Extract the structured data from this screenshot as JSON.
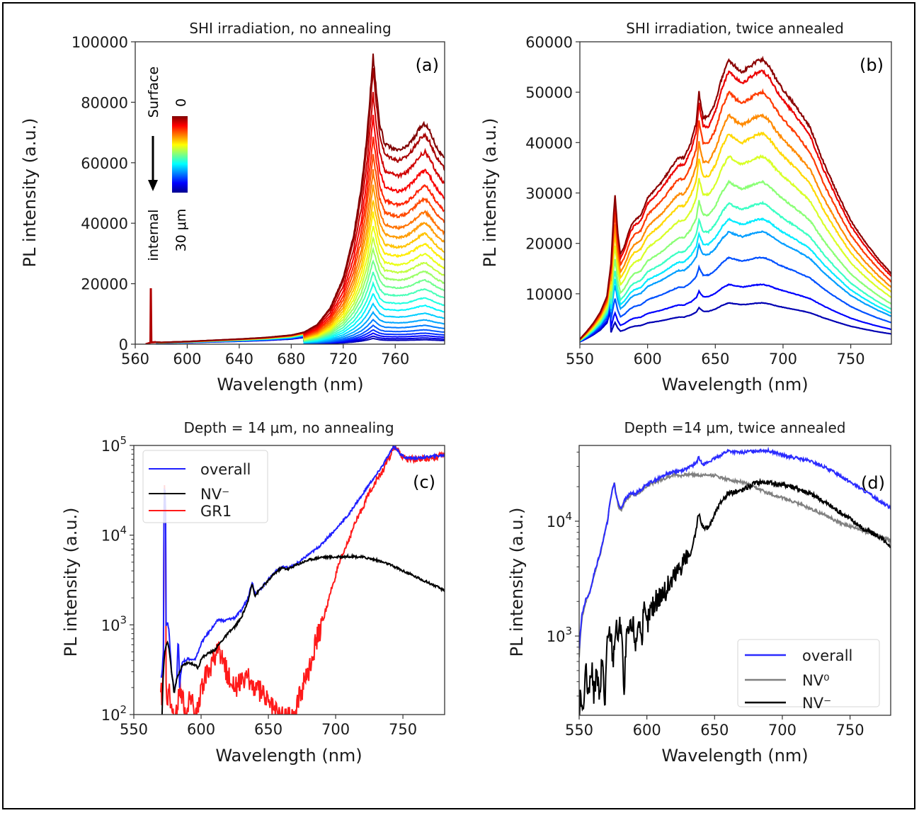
{
  "chart_data": [
    {
      "id": "a",
      "type": "line",
      "title": "SHI irradiation, no annealing",
      "panel_label": "(a)",
      "xlabel": "Wavelength (nm)",
      "ylabel": "PL intensity (a.u.)",
      "xlim": [
        560,
        798
      ],
      "ylim": [
        0,
        100000
      ],
      "xticks": [
        560,
        600,
        640,
        680,
        720,
        760
      ],
      "yticks": [
        0,
        20000,
        40000,
        60000,
        80000,
        100000
      ],
      "ytick_labels": [
        "0",
        "20000",
        "40000",
        "60000",
        "80000",
        "100000"
      ],
      "yscale": "linear",
      "colormap": "jet",
      "colorbar": {
        "top_label": "0",
        "bottom_label": "30 μm",
        "arrow_top": "Surface",
        "arrow_bottom": "internal"
      },
      "laser_line": {
        "x": 572,
        "y": 18500
      },
      "base_curve": {
        "x": [
          568,
          571,
          573,
          576,
          580,
          600,
          620,
          640,
          660,
          680,
          690,
          700,
          710,
          720,
          728,
          734,
          738,
          741,
          743,
          745,
          748,
          752,
          757,
          762,
          768,
          774,
          779,
          783,
          787,
          792,
          798
        ],
        "y": [
          0,
          500,
          600,
          700,
          600,
          900,
          1300,
          1700,
          2200,
          3000,
          4000,
          6500,
          12000,
          22000,
          36000,
          52000,
          68000,
          84000,
          95500,
          86000,
          73000,
          66000,
          65000,
          64000,
          65000,
          68000,
          71500,
          73000,
          70000,
          65000,
          61000
        ]
      },
      "peak_region_from": 690,
      "curve_scales": [
        1.0,
        0.95,
        0.87,
        0.79,
        0.72,
        0.66,
        0.6,
        0.55,
        0.5,
        0.455,
        0.41,
        0.37,
        0.33,
        0.29,
        0.25,
        0.21,
        0.175,
        0.14,
        0.11,
        0.085,
        0.065,
        0.05,
        0.038,
        0.028,
        0.02
      ]
    },
    {
      "id": "b",
      "type": "line",
      "title": "SHI irradiation, twice annealed",
      "panel_label": "(b)",
      "xlabel": "Wavelength (nm)",
      "ylabel": "PL intensity (a.u.)",
      "xlim": [
        550,
        780
      ],
      "ylim": [
        0,
        60000
      ],
      "xticks": [
        550,
        600,
        650,
        700,
        750
      ],
      "yticks": [
        10000,
        20000,
        30000,
        40000,
        50000,
        60000
      ],
      "ytick_labels": [
        "10000",
        "20000",
        "30000",
        "40000",
        "50000",
        "60000"
      ],
      "yscale": "linear",
      "colormap": "jet",
      "base_curve": {
        "x": [
          550,
          555,
          560,
          565,
          570,
          573,
          575,
          576,
          578,
          580,
          583,
          587,
          590,
          595,
          600,
          610,
          620,
          623,
          627,
          632,
          636,
          638,
          639,
          641,
          645,
          650,
          655,
          660,
          665,
          670,
          675,
          680,
          685,
          690,
          695,
          700,
          710,
          720,
          730,
          740,
          750,
          760,
          770,
          780
        ],
        "y": [
          1000,
          2500,
          4200,
          6300,
          9500,
          16000,
          26000,
          29500,
          22000,
          17800,
          19500,
          23000,
          24500,
          25500,
          29000,
          32000,
          36000,
          37000,
          37000,
          40000,
          44000,
          50000,
          48000,
          45000,
          45000,
          48000,
          53000,
          56500,
          55000,
          54000,
          55000,
          56000,
          56500,
          55000,
          52500,
          50500,
          47000,
          43000,
          36000,
          30000,
          24500,
          20500,
          17000,
          14000
        ]
      },
      "series_colors": [
        "#800000",
        "#e00000",
        "#ff4500",
        "#ff9400",
        "#ffdc00",
        "#a6ff50",
        "#50ffa6",
        "#00e0ff",
        "#0094ff",
        "#1c40ff",
        "#0000e8",
        "#00008f"
      ],
      "curve_scales": [
        1.0,
        0.96,
        0.885,
        0.805,
        0.74,
        0.66,
        0.57,
        0.495,
        0.44,
        0.395,
        0.305,
        0.21,
        0.145
      ],
      "small_curve_series_scales_note": "lowest curves"
    },
    {
      "id": "c",
      "type": "line",
      "title": "Depth = 14 μm, no annealing",
      "panel_label": "(c)",
      "xlabel": "Wavelength (nm)",
      "ylabel": "PL intensity (a.u.)",
      "xlim": [
        550,
        781
      ],
      "ylim": [
        100,
        100000
      ],
      "yscale": "log",
      "xticks": [
        550,
        600,
        650,
        700,
        750
      ],
      "yticks": [
        100,
        1000,
        10000,
        100000
      ],
      "ytick_labels": [
        {
          "base": "10",
          "exp": "2"
        },
        {
          "base": "10",
          "exp": "3"
        },
        {
          "base": "10",
          "exp": "4"
        },
        {
          "base": "10",
          "exp": "5"
        }
      ],
      "legend": {
        "position": "upper-left"
      },
      "series": [
        {
          "name": "overall",
          "color": "#1f1fff",
          "x": [
            570,
            571,
            572,
            573,
            574,
            575,
            576,
            577,
            578,
            580,
            582,
            583,
            584,
            586,
            590,
            595,
            598,
            600,
            605,
            610,
            613,
            617,
            620,
            625,
            630,
            635,
            638,
            640,
            642,
            645,
            650,
            655,
            660,
            665,
            670,
            675,
            680,
            685,
            690,
            700,
            710,
            720,
            725,
            730,
            735,
            740,
            743,
            745,
            748,
            752,
            760,
            770,
            781
          ],
          "y": [
            260,
            280,
            500,
            40000,
            1000,
            1050,
            900,
            500,
            300,
            180,
            250,
            700,
            200,
            380,
            420,
            400,
            500,
            620,
            800,
            1000,
            1150,
            1100,
            1150,
            1200,
            1450,
            2000,
            3000,
            2200,
            2300,
            2600,
            3200,
            3900,
            4400,
            4300,
            4700,
            5300,
            6100,
            6900,
            8000,
            11500,
            17000,
            28000,
            37000,
            46000,
            60000,
            80000,
            98000,
            93000,
            80000,
            73000,
            72000,
            75000,
            78000
          ]
        },
        {
          "name": "NV⁻",
          "color": "#000000",
          "x": [
            571,
            572,
            573,
            574,
            575,
            576,
            578,
            580,
            582,
            584,
            586,
            590,
            595,
            598,
            600,
            605,
            610,
            615,
            620,
            625,
            630,
            635,
            638,
            640,
            642,
            645,
            650,
            655,
            660,
            665,
            670,
            680,
            690,
            700,
            710,
            720,
            730,
            740,
            750,
            760,
            770,
            781
          ],
          "y": [
            100,
            300,
            500,
            600,
            650,
            550,
            300,
            170,
            250,
            300,
            350,
            380,
            360,
            330,
            420,
            480,
            520,
            650,
            800,
            950,
            1200,
            1800,
            2900,
            2100,
            2300,
            2600,
            3100,
            3800,
            4300,
            4200,
            4600,
            5300,
            5700,
            5700,
            5800,
            5700,
            5300,
            4700,
            4000,
            3400,
            2900,
            2400
          ]
        },
        {
          "name": "GR1",
          "color": "#ff1a1a",
          "x": [
            570,
            571,
            572,
            573,
            574,
            575,
            576,
            578,
            580,
            582,
            584,
            588,
            592,
            596,
            600,
            605,
            610,
            613,
            616,
            620,
            625,
            630,
            635,
            640,
            645,
            650,
            655,
            660,
            665,
            670,
            672,
            675,
            680,
            685,
            690,
            695,
            700,
            705,
            710,
            715,
            720,
            725,
            730,
            735,
            740,
            743,
            745,
            748,
            752,
            760,
            770,
            781
          ],
          "y": [
            200,
            150,
            400,
            38000,
            200,
            100,
            220,
            100,
            100,
            100,
            210,
            100,
            150,
            100,
            180,
            300,
            420,
            500,
            380,
            280,
            210,
            220,
            250,
            200,
            180,
            140,
            110,
            100,
            100,
            100,
            140,
            180,
            320,
            600,
            1000,
            1900,
            3500,
            5800,
            9000,
            14000,
            20000,
            30000,
            40000,
            52000,
            72000,
            95000,
            92000,
            78000,
            71000,
            70000,
            73000,
            78000
          ]
        }
      ]
    },
    {
      "id": "d",
      "type": "line",
      "title": "Depth =14 μm, twice annealed",
      "panel_label": "(d)",
      "xlabel": "Wavelength (nm)",
      "ylabel": "PL intensity (a.u.)",
      "xlim": [
        550,
        780
      ],
      "ylim": [
        204,
        45700
      ],
      "yscale": "log",
      "xticks": [
        550,
        600,
        650,
        700,
        750
      ],
      "yticks": [
        1000,
        10000
      ],
      "ytick_labels": [
        {
          "base": "10",
          "exp": "3"
        },
        {
          "base": "10",
          "exp": "4"
        }
      ],
      "legend": {
        "position": "lower-right"
      },
      "series": [
        {
          "name": "overall",
          "color": "#2b2bff",
          "x": [
            550,
            552,
            555,
            558,
            560,
            563,
            566,
            569,
            571,
            573,
            575,
            576,
            577,
            579,
            581,
            584,
            588,
            592,
            596,
            600,
            605,
            610,
            615,
            620,
            625,
            630,
            635,
            637,
            638,
            640,
            642,
            645,
            650,
            655,
            660,
            665,
            670,
            675,
            680,
            685,
            690,
            695,
            700,
            710,
            720,
            730,
            740,
            750,
            760,
            770,
            780
          ],
          "y": [
            750,
            1500,
            2100,
            2400,
            3100,
            4200,
            5500,
            8000,
            10000,
            15000,
            20000,
            21500,
            17500,
            14000,
            13000,
            15500,
            17500,
            17500,
            19000,
            21000,
            22500,
            24000,
            26000,
            27000,
            27500,
            29000,
            31000,
            33000,
            36000,
            33000,
            31500,
            32500,
            35000,
            38000,
            41000,
            40000,
            39500,
            40500,
            41000,
            41500,
            41000,
            39500,
            37500,
            35500,
            33500,
            30000,
            26000,
            22000,
            18500,
            15500,
            13000
          ]
        },
        {
          "name": "NV⁰",
          "color": "#808080",
          "x": [
            550,
            552,
            555,
            558,
            560,
            563,
            566,
            569,
            571,
            573,
            575,
            576,
            577,
            579,
            581,
            584,
            588,
            592,
            596,
            600,
            605,
            610,
            615,
            620,
            625,
            630,
            635,
            640,
            645,
            650,
            655,
            660,
            670,
            680,
            690,
            700,
            710,
            720,
            730,
            740,
            750,
            760,
            770,
            780
          ],
          "y": [
            650,
            1400,
            2000,
            2400,
            3000,
            4100,
            5400,
            8000,
            10000,
            15000,
            20000,
            21500,
            17500,
            13500,
            12500,
            15000,
            17000,
            17000,
            18500,
            20500,
            21500,
            23000,
            24000,
            25500,
            25000,
            25500,
            25500,
            25000,
            25500,
            25000,
            24000,
            23000,
            22000,
            19500,
            17500,
            16000,
            14500,
            13000,
            11500,
            10000,
            9000,
            8200,
            7500,
            6800
          ]
        },
        {
          "name": "NV⁻",
          "color": "#000000",
          "x": [
            550,
            551,
            552,
            553,
            555,
            557,
            559,
            561,
            563,
            565,
            567,
            569,
            571,
            573,
            575,
            577,
            579,
            581,
            583,
            585,
            587,
            590,
            592,
            594,
            596,
            598,
            600,
            603,
            606,
            610,
            614,
            618,
            622,
            626,
            630,
            633,
            635,
            637,
            638,
            639,
            640,
            642,
            645,
            648,
            650,
            653,
            656,
            660,
            665,
            670,
            675,
            680,
            685,
            690,
            700,
            710,
            720,
            730,
            740,
            750,
            760,
            770,
            775,
            778,
            780
          ],
          "y": [
            220,
            350,
            280,
            200,
            480,
            250,
            550,
            300,
            500,
            250,
            600,
            220,
            900,
            1100,
            600,
            1200,
            1000,
            1400,
            200,
            900,
            1100,
            1200,
            800,
            1500,
            900,
            1600,
            1200,
            1700,
            1900,
            2300,
            2400,
            3000,
            3500,
            4400,
            5000,
            5300,
            7000,
            9000,
            11500,
            11000,
            9500,
            9000,
            8700,
            10000,
            11500,
            13500,
            15500,
            17500,
            18000,
            18500,
            20000,
            21500,
            22000,
            21500,
            21000,
            19500,
            17500,
            15000,
            12500,
            10500,
            8500,
            7500,
            6800,
            6000,
            6200
          ]
        }
      ]
    }
  ]
}
